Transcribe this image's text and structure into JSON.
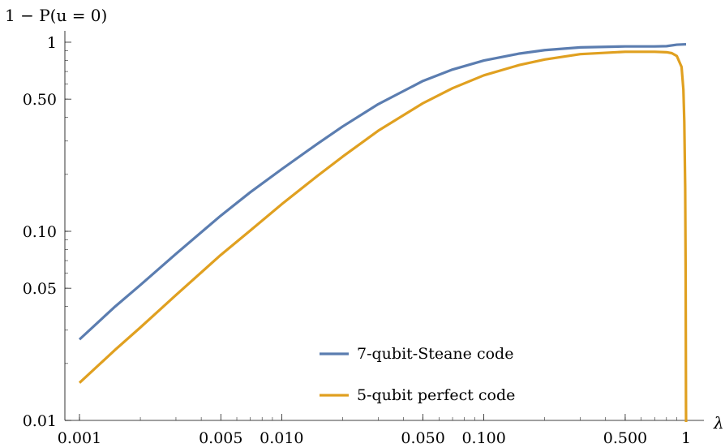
{
  "chart_data": {
    "type": "line",
    "xlabel": "λ",
    "ylabel": "1 − P(u = 0)",
    "x_scale": "log",
    "y_scale": "log",
    "xlim": [
      0.001,
      1
    ],
    "ylim": [
      0.01,
      1
    ],
    "x_ticks": [
      {
        "value": 0.001,
        "label": "0.001"
      },
      {
        "value": 0.005,
        "label": "0.005"
      },
      {
        "value": 0.01,
        "label": "0.010"
      },
      {
        "value": 0.05,
        "label": "0.050"
      },
      {
        "value": 0.1,
        "label": "0.100"
      },
      {
        "value": 0.5,
        "label": "0.500"
      },
      {
        "value": 1,
        "label": "1"
      }
    ],
    "y_ticks": [
      {
        "value": 0.01,
        "label": "0.01"
      },
      {
        "value": 0.05,
        "label": "0.05"
      },
      {
        "value": 0.1,
        "label": "0.10"
      },
      {
        "value": 0.5,
        "label": "0.50"
      },
      {
        "value": 1,
        "label": "1"
      }
    ],
    "grid": false,
    "legend_position": "bottom-center",
    "series": [
      {
        "name": "7-qubit-Steane code",
        "color": "#5B7DB0",
        "points": [
          [
            0.001,
            0.0268
          ],
          [
            0.0015,
            0.04
          ],
          [
            0.002,
            0.052
          ],
          [
            0.003,
            0.076
          ],
          [
            0.005,
            0.121
          ],
          [
            0.007,
            0.161
          ],
          [
            0.01,
            0.213
          ],
          [
            0.015,
            0.29
          ],
          [
            0.02,
            0.358
          ],
          [
            0.03,
            0.47
          ],
          [
            0.05,
            0.624
          ],
          [
            0.07,
            0.717
          ],
          [
            0.1,
            0.8
          ],
          [
            0.15,
            0.871
          ],
          [
            0.2,
            0.908
          ],
          [
            0.3,
            0.939
          ],
          [
            0.5,
            0.95
          ],
          [
            0.7,
            0.95
          ],
          [
            0.8,
            0.953
          ],
          [
            0.9,
            0.97
          ],
          [
            1.0,
            0.975
          ]
        ]
      },
      {
        "name": "5-qubit perfect code",
        "color": "#E0A020",
        "points": [
          [
            0.001,
            0.0158
          ],
          [
            0.0015,
            0.0236
          ],
          [
            0.002,
            0.031
          ],
          [
            0.003,
            0.046
          ],
          [
            0.005,
            0.075
          ],
          [
            0.007,
            0.101
          ],
          [
            0.01,
            0.139
          ],
          [
            0.015,
            0.196
          ],
          [
            0.02,
            0.248
          ],
          [
            0.03,
            0.34
          ],
          [
            0.05,
            0.476
          ],
          [
            0.07,
            0.571
          ],
          [
            0.1,
            0.668
          ],
          [
            0.15,
            0.758
          ],
          [
            0.2,
            0.81
          ],
          [
            0.3,
            0.865
          ],
          [
            0.5,
            0.89
          ],
          [
            0.7,
            0.89
          ],
          [
            0.8,
            0.885
          ],
          [
            0.85,
            0.875
          ],
          [
            0.9,
            0.845
          ],
          [
            0.95,
            0.74
          ],
          [
            0.97,
            0.56
          ],
          [
            0.98,
            0.38
          ],
          [
            0.99,
            0.17
          ],
          [
            0.995,
            0.06
          ],
          [
            0.999,
            0.012
          ],
          [
            1.0,
            0.0098
          ]
        ]
      }
    ]
  }
}
